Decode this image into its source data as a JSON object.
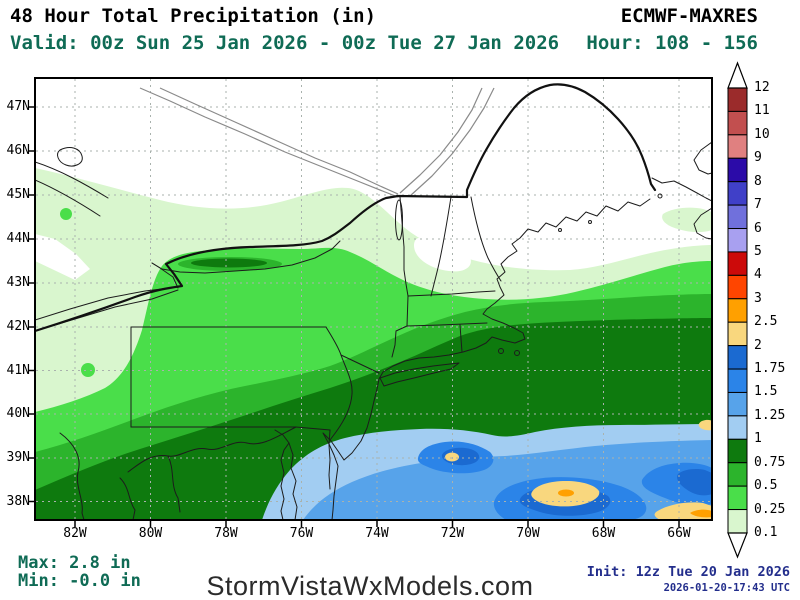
{
  "header": {
    "title": "48 Hour Total Precipitation (in)",
    "model": "ECMWF-MAXRES",
    "valid": "Valid: 00z Sun 25 Jan 2026 - 00z Tue 27 Jan 2026",
    "hour": "Hour: 108 - 156"
  },
  "footer": {
    "max": "Max: 2.8 in",
    "min": "Min: -0.0 in",
    "site": "StormVistaWxModels.com",
    "init": "Init: 12z Tue 20 Jan 2026",
    "init_utc": "2026-01-20-17:43 UTC"
  },
  "map": {
    "lat_labels": [
      "47N",
      "46N",
      "45N",
      "44N",
      "43N",
      "42N",
      "41N",
      "40N",
      "39N",
      "38N"
    ],
    "lon_labels": [
      "82W",
      "80W",
      "78W",
      "76W",
      "74W",
      "72W",
      "70W",
      "68W",
      "66W"
    ]
  },
  "colorbar": {
    "labels": [
      "12",
      "11",
      "10",
      "9",
      "8",
      "7",
      "6",
      "5",
      "4",
      "3",
      "2.5",
      "2",
      "1.75",
      "1.5",
      "1.25",
      "1",
      "0.75",
      "0.5",
      "0.25",
      "0.1"
    ],
    "colors": [
      "#9B2B2B",
      "#C24F4F",
      "#E08080",
      "#2B0BA8",
      "#4040C8",
      "#7070DC",
      "#A8A0F0",
      "#CC0A0A",
      "#FF4500",
      "#FFA000",
      "#F9D77E",
      "#1B6AD1",
      "#2B84E8",
      "#57A3EA",
      "#A2CDF2",
      "#0E7A0E",
      "#2CB42C",
      "#4ADE4A",
      "#D9F6CE"
    ]
  },
  "colors": {
    "header_accent": "#0F6B55",
    "init_accent": "#232E8C",
    "land_outline": "#1c1c1c",
    "grid": "#a9b2ad"
  }
}
